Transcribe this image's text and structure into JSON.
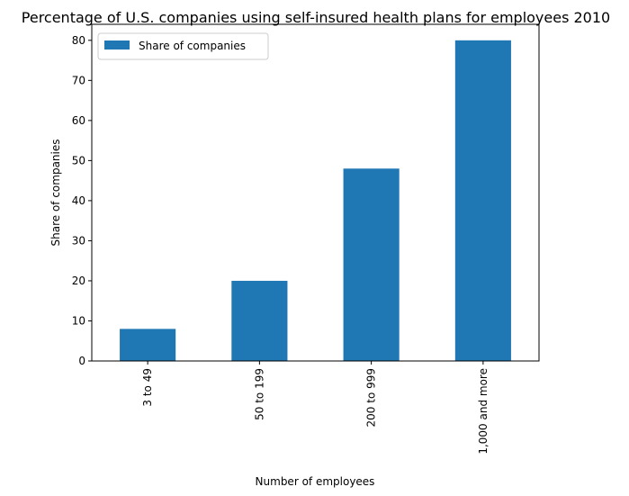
{
  "chart_data": {
    "type": "bar",
    "title": "Percentage of U.S. companies using self-insured health plans for employees 2010",
    "xlabel": "Number of employees",
    "ylabel": "Share of companies",
    "categories": [
      "3 to 49",
      "50 to 199",
      "200 to 999",
      "1,000 and more"
    ],
    "series": [
      {
        "name": "Share of companies",
        "values": [
          8,
          20,
          48,
          80
        ]
      }
    ],
    "ylim": [
      0,
      84
    ],
    "yticks": [
      0,
      10,
      20,
      30,
      40,
      50,
      60,
      70,
      80
    ],
    "grid": false,
    "legend": "top-left",
    "bar_color": "#1f77b4"
  }
}
